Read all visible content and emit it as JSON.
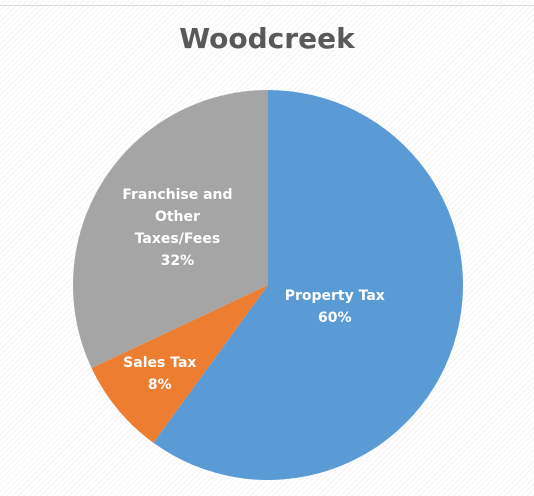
{
  "chart_data": {
    "type": "pie",
    "title": "Woodcreek",
    "categories": [
      "Property Tax",
      "Sales Tax",
      "Franchise and Other Taxes/Fees"
    ],
    "values": [
      60,
      8,
      32
    ],
    "value_labels": [
      "60%",
      "8%",
      "32%"
    ],
    "colors": [
      "#5b9bd5",
      "#ed7d31",
      "#a5a5a5"
    ]
  }
}
